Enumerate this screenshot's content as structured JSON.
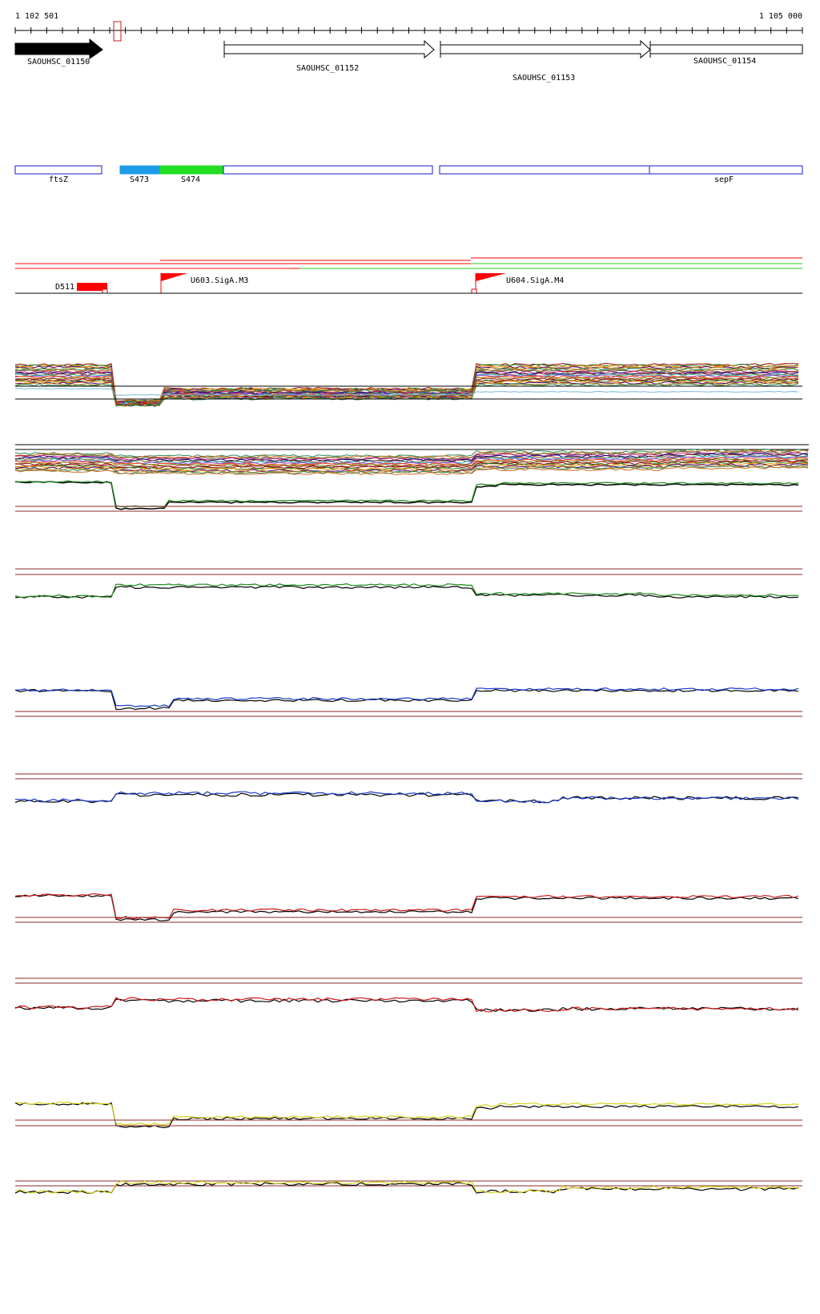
{
  "coords": {
    "start": "1 102 501",
    "end": "1 105 000"
  },
  "genes": [
    {
      "label": "SAOUHSC_01150",
      "fill": "#000000"
    },
    {
      "label": "SAOUHSC_01152",
      "fill": "#ffffff"
    },
    {
      "label": "SAOUHSC_01153",
      "fill": "#ffffff"
    },
    {
      "label": "SAOUHSC_01154",
      "fill": "#ffffff"
    }
  ],
  "features": [
    {
      "label": "ftsZ"
    },
    {
      "label": "S473",
      "color": "#1e9be8"
    },
    {
      "label": "S474",
      "color": "#22dd22"
    },
    {
      "label": ""
    },
    {
      "label": ""
    },
    {
      "label": "sepF"
    }
  ],
  "promoters": [
    {
      "label": "D511"
    },
    {
      "label": "U603.SigA.M3"
    },
    {
      "label": "U604.SigA.M4"
    }
  ],
  "colors": {
    "gene_outline": "#000000",
    "feature_outline": "#1a1acc",
    "promoter": "#ff0000",
    "threshold": "#8b2a2a",
    "track_green": "#1a8a1a",
    "track_blue": "#1a3acc",
    "track_red": "#cc1a1a",
    "track_yellow": "#d4d41a"
  },
  "tracks": [
    {
      "name": "overlay-track-a",
      "color": "multi"
    },
    {
      "name": "overlay-track-b",
      "color": "multi"
    },
    {
      "name": "green-track-1",
      "color": "#1a8a1a"
    },
    {
      "name": "green-track-2",
      "color": "#1a8a1a"
    },
    {
      "name": "blue-track-1",
      "color": "#1a3acc"
    },
    {
      "name": "blue-track-2",
      "color": "#1a3acc"
    },
    {
      "name": "red-track-1",
      "color": "#cc1a1a"
    },
    {
      "name": "red-track-2",
      "color": "#cc1a1a"
    },
    {
      "name": "yellow-track-1",
      "color": "#d4d41a"
    },
    {
      "name": "yellow-track-2",
      "color": "#d4d41a"
    }
  ]
}
